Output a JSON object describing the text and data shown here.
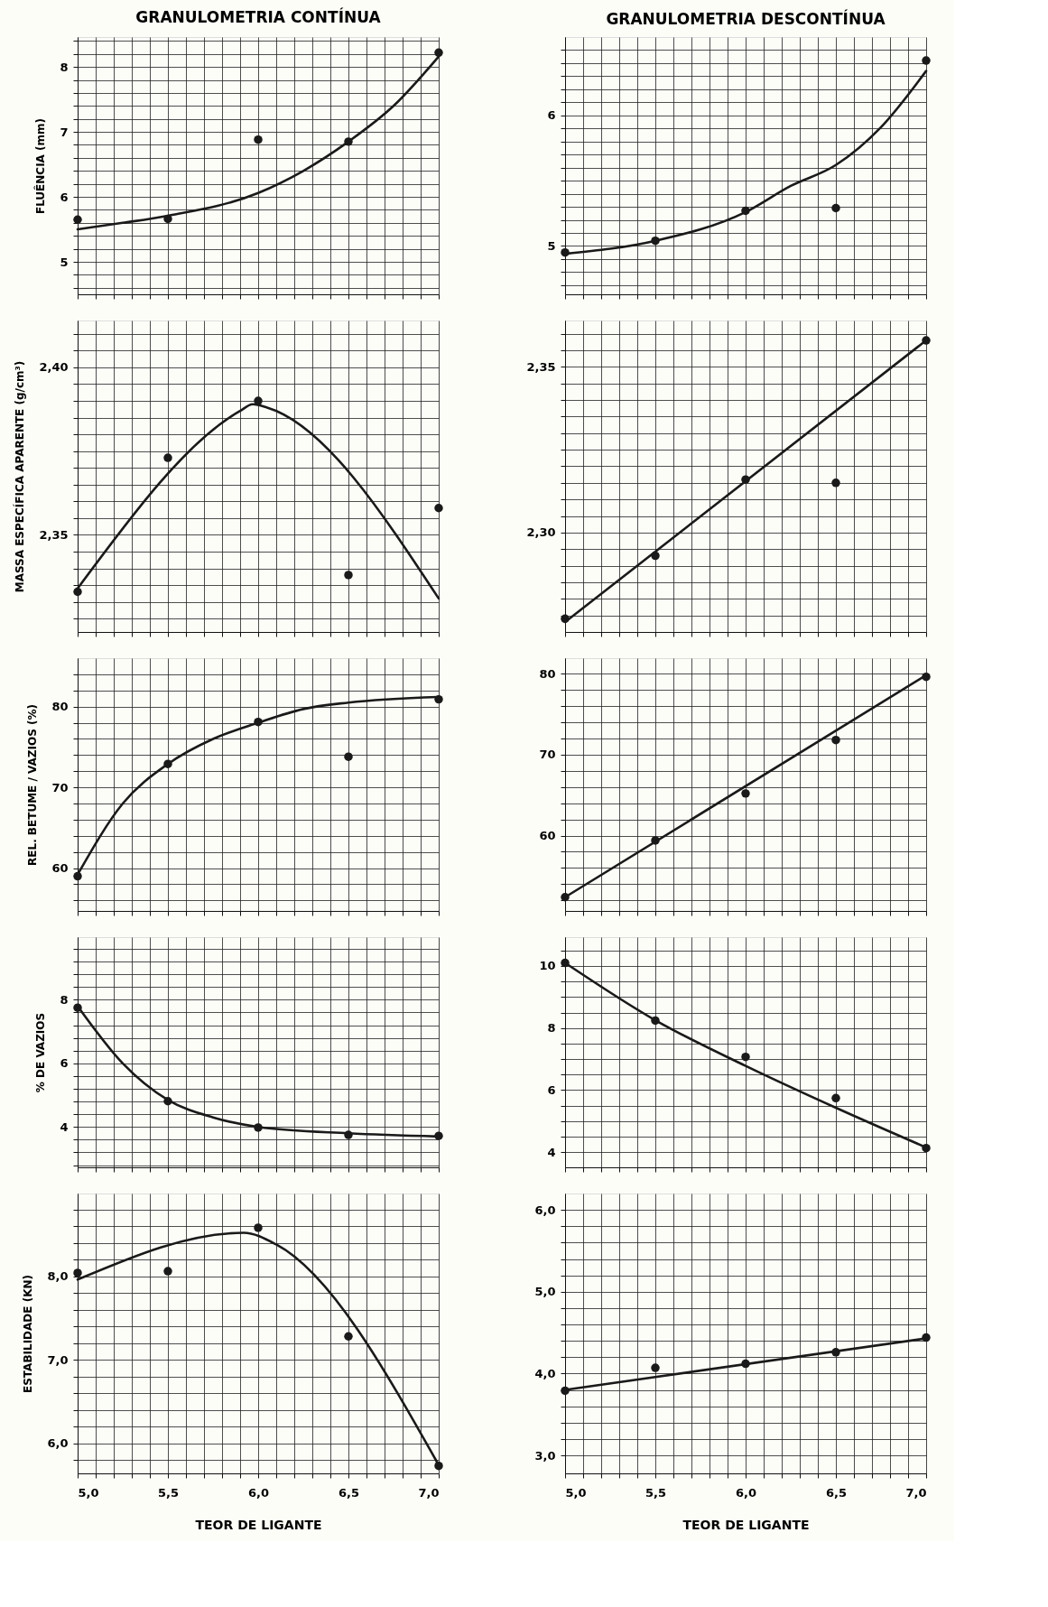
{
  "chart_data": [
    {
      "type": "scatter",
      "title": "GRANULOMETRIA CONTÍNUA",
      "ylabel": "FLUÊNCIA (mm)",
      "xlim": [
        5.0,
        7.0
      ],
      "ylim": [
        4.5,
        8.46
      ],
      "grid": true,
      "marker": "circle",
      "tick_labels": "y",
      "xticks": [
        {
          "value": 5.0,
          "label": null
        },
        {
          "value": 5.1,
          "label": null
        },
        {
          "value": 5.2,
          "label": null
        },
        {
          "value": 5.3,
          "label": null
        },
        {
          "value": 5.4,
          "label": null
        },
        {
          "value": 5.5,
          "label": null
        },
        {
          "value": 5.6,
          "label": null
        },
        {
          "value": 5.7,
          "label": null
        },
        {
          "value": 5.8,
          "label": null
        },
        {
          "value": 5.9,
          "label": null
        },
        {
          "value": 6.0,
          "label": null
        },
        {
          "value": 6.1,
          "label": null
        },
        {
          "value": 6.2,
          "label": null
        },
        {
          "value": 6.3,
          "label": null
        },
        {
          "value": 6.4,
          "label": null
        },
        {
          "value": 6.5,
          "label": null
        },
        {
          "value": 6.6,
          "label": null
        },
        {
          "value": 6.7,
          "label": null
        },
        {
          "value": 6.8,
          "label": null
        },
        {
          "value": 6.9,
          "label": null
        },
        {
          "value": 7.0,
          "label": null
        }
      ],
      "yticks": [
        {
          "value": 4.6,
          "label": null
        },
        {
          "value": 4.8,
          "label": null
        },
        5,
        {
          "value": 5.2,
          "label": null
        },
        {
          "value": 5.4,
          "label": null
        },
        {
          "value": 5.6,
          "label": null
        },
        {
          "value": 5.8,
          "label": null
        },
        6,
        {
          "value": 6.2,
          "label": null
        },
        {
          "value": 6.4,
          "label": null
        },
        {
          "value": 6.6,
          "label": null
        },
        {
          "value": 6.8,
          "label": null
        },
        7,
        {
          "value": 7.2,
          "label": null
        },
        {
          "value": 7.4,
          "label": null
        },
        {
          "value": 7.6,
          "label": null
        },
        {
          "value": 7.8,
          "label": null
        },
        8,
        {
          "value": 8.2,
          "label": null
        },
        {
          "value": 8.4,
          "label": null
        }
      ],
      "series": [
        {
          "color": "#1a1a1a",
          "x": [
            5.0,
            5.5,
            6.0,
            6.5,
            7.0
          ],
          "values": [
            5.65,
            5.66,
            6.88,
            6.85,
            8.22
          ]
        },
        {
          "type": "line",
          "marker": "none",
          "color": "#1a1a1a",
          "x": [
            5.0,
            5.25,
            5.5,
            6.0,
            6.25,
            6.5,
            6.75,
            7.0
          ],
          "values": [
            5.5,
            5.6,
            5.71,
            6.06,
            6.4,
            6.85,
            7.4,
            8.16
          ]
        }
      ]
    },
    {
      "type": "scatter",
      "title": "GRANULOMETRIA DESCONTÍNUA",
      "xlim": [
        5.0,
        7.0
      ],
      "ylim": [
        4.63,
        6.6
      ],
      "grid": true,
      "marker": "circle",
      "tick_labels": "y",
      "xticks": [
        {
          "value": 5.0,
          "label": null
        },
        {
          "value": 5.1,
          "label": null
        },
        {
          "value": 5.2,
          "label": null
        },
        {
          "value": 5.3,
          "label": null
        },
        {
          "value": 5.4,
          "label": null
        },
        {
          "value": 5.5,
          "label": null
        },
        {
          "value": 5.6,
          "label": null
        },
        {
          "value": 5.7,
          "label": null
        },
        {
          "value": 5.8,
          "label": null
        },
        {
          "value": 5.9,
          "label": null
        },
        {
          "value": 6.0,
          "label": null
        },
        {
          "value": 6.1,
          "label": null
        },
        {
          "value": 6.2,
          "label": null
        },
        {
          "value": 6.3,
          "label": null
        },
        {
          "value": 6.4,
          "label": null
        },
        {
          "value": 6.5,
          "label": null
        },
        {
          "value": 6.6,
          "label": null
        },
        {
          "value": 6.7,
          "label": null
        },
        {
          "value": 6.8,
          "label": null
        },
        {
          "value": 6.9,
          "label": null
        },
        {
          "value": 7.0,
          "label": null
        }
      ],
      "yticks": [
        {
          "value": 4.7,
          "label": null
        },
        {
          "value": 4.8,
          "label": null
        },
        {
          "value": 4.9,
          "label": null
        },
        5,
        {
          "value": 5.1,
          "label": null
        },
        {
          "value": 5.2,
          "label": null
        },
        {
          "value": 5.3,
          "label": null
        },
        {
          "value": 5.4,
          "label": null
        },
        {
          "value": 5.5,
          "label": null
        },
        {
          "value": 5.6,
          "label": null
        },
        {
          "value": 5.7,
          "label": null
        },
        {
          "value": 5.8,
          "label": null
        },
        {
          "value": 5.9,
          "label": null
        },
        6,
        {
          "value": 6.1,
          "label": null
        },
        {
          "value": 6.2,
          "label": null
        },
        {
          "value": 6.3,
          "label": null
        },
        {
          "value": 6.4,
          "label": null
        },
        {
          "value": 6.5,
          "label": null
        }
      ],
      "series": [
        {
          "color": "#1a1a1a",
          "x": [
            5.0,
            5.5,
            6.0,
            6.5,
            7.0
          ],
          "values": [
            4.95,
            5.04,
            5.27,
            5.29,
            6.42
          ]
        },
        {
          "type": "line",
          "marker": "none",
          "color": "#1a1a1a",
          "x": [
            5.0,
            5.5,
            6.0,
            6.25,
            6.5,
            6.75,
            7.0
          ],
          "values": [
            4.94,
            5.04,
            5.26,
            5.46,
            5.62,
            5.91,
            6.34
          ]
        }
      ]
    },
    {
      "type": "scatter",
      "ylabel": "MASSA ESPECÍFICA APARENTE (g/cm³)",
      "xlim": [
        5.0,
        7.0
      ],
      "ylim": [
        2.321,
        2.414
      ],
      "grid": true,
      "marker": "circle",
      "tick_labels": "y",
      "xticks": [
        {
          "value": 5.0,
          "label": null
        },
        {
          "value": 5.1,
          "label": null
        },
        {
          "value": 5.2,
          "label": null
        },
        {
          "value": 5.3,
          "label": null
        },
        {
          "value": 5.4,
          "label": null
        },
        {
          "value": 5.5,
          "label": null
        },
        {
          "value": 5.6,
          "label": null
        },
        {
          "value": 5.7,
          "label": null
        },
        {
          "value": 5.8,
          "label": null
        },
        {
          "value": 5.9,
          "label": null
        },
        {
          "value": 6.0,
          "label": null
        },
        {
          "value": 6.1,
          "label": null
        },
        {
          "value": 6.2,
          "label": null
        },
        {
          "value": 6.3,
          "label": null
        },
        {
          "value": 6.4,
          "label": null
        },
        {
          "value": 6.5,
          "label": null
        },
        {
          "value": 6.6,
          "label": null
        },
        {
          "value": 6.7,
          "label": null
        },
        {
          "value": 6.8,
          "label": null
        },
        {
          "value": 6.9,
          "label": null
        },
        {
          "value": 7.0,
          "label": null
        }
      ],
      "yticks": [
        {
          "value": 2.325,
          "label": null
        },
        {
          "value": 2.33,
          "label": null
        },
        {
          "value": 2.335,
          "label": null
        },
        {
          "value": 2.34,
          "label": null
        },
        {
          "value": 2.345,
          "label": null
        },
        {
          "value": 2.35,
          "label": "2,35"
        },
        {
          "value": 2.355,
          "label": null
        },
        {
          "value": 2.36,
          "label": null
        },
        {
          "value": 2.365,
          "label": null
        },
        {
          "value": 2.37,
          "label": null
        },
        {
          "value": 2.375,
          "label": null
        },
        {
          "value": 2.38,
          "label": null
        },
        {
          "value": 2.385,
          "label": null
        },
        {
          "value": 2.39,
          "label": null
        },
        {
          "value": 2.395,
          "label": null
        },
        {
          "value": 2.4,
          "label": "2,40"
        },
        {
          "value": 2.405,
          "label": null
        },
        {
          "value": 2.41,
          "label": null
        }
      ],
      "series": [
        {
          "color": "#1a1a1a",
          "x": [
            5.0,
            5.5,
            6.0,
            6.5,
            7.0
          ],
          "values": [
            2.333,
            2.373,
            2.39,
            2.338,
            2.358
          ]
        },
        {
          "type": "line",
          "marker": "none",
          "color": "#1a1a1a",
          "x": [
            5.0,
            5.9,
            5.97,
            6.05,
            7.0
          ],
          "values": [
            2.334,
            2.387,
            2.389,
            2.388,
            2.331
          ]
        }
      ]
    },
    {
      "type": "scatter",
      "xlim": [
        5.0,
        7.0
      ],
      "ylim": [
        2.27,
        2.364
      ],
      "grid": true,
      "marker": "circle",
      "tick_labels": "y",
      "xticks": [
        {
          "value": 5.0,
          "label": null
        },
        {
          "value": 5.1,
          "label": null
        },
        {
          "value": 5.2,
          "label": null
        },
        {
          "value": 5.3,
          "label": null
        },
        {
          "value": 5.4,
          "label": null
        },
        {
          "value": 5.5,
          "label": null
        },
        {
          "value": 5.6,
          "label": null
        },
        {
          "value": 5.7,
          "label": null
        },
        {
          "value": 5.8,
          "label": null
        },
        {
          "value": 5.9,
          "label": null
        },
        {
          "value": 6.0,
          "label": null
        },
        {
          "value": 6.1,
          "label": null
        },
        {
          "value": 6.2,
          "label": null
        },
        {
          "value": 6.3,
          "label": null
        },
        {
          "value": 6.4,
          "label": null
        },
        {
          "value": 6.5,
          "label": null
        },
        {
          "value": 6.6,
          "label": null
        },
        {
          "value": 6.7,
          "label": null
        },
        {
          "value": 6.8,
          "label": null
        },
        {
          "value": 6.9,
          "label": null
        },
        {
          "value": 7.0,
          "label": null
        }
      ],
      "yticks": [
        {
          "value": 2.275,
          "label": null
        },
        {
          "value": 2.28,
          "label": null
        },
        {
          "value": 2.285,
          "label": null
        },
        {
          "value": 2.29,
          "label": null
        },
        {
          "value": 2.295,
          "label": null
        },
        {
          "value": 2.3,
          "label": "2,30"
        },
        {
          "value": 2.305,
          "label": null
        },
        {
          "value": 2.31,
          "label": null
        },
        {
          "value": 2.315,
          "label": null
        },
        {
          "value": 2.32,
          "label": null
        },
        {
          "value": 2.325,
          "label": null
        },
        {
          "value": 2.33,
          "label": null
        },
        {
          "value": 2.335,
          "label": null
        },
        {
          "value": 2.34,
          "label": null
        },
        {
          "value": 2.345,
          "label": null
        },
        {
          "value": 2.35,
          "label": "2,35"
        },
        {
          "value": 2.355,
          "label": null
        },
        {
          "value": 2.36,
          "label": null
        }
      ],
      "series": [
        {
          "color": "#1a1a1a",
          "x": [
            5.0,
            5.5,
            6.0,
            6.5,
            7.0
          ],
          "values": [
            2.274,
            2.293,
            2.316,
            2.315,
            2.358
          ]
        },
        {
          "type": "line",
          "marker": "none",
          "color": "#1a1a1a",
          "x": [
            5.0,
            7.0
          ],
          "values": [
            2.273,
            2.358
          ]
        }
      ]
    },
    {
      "type": "scatter",
      "ylabel": "REL. BETUME / VAZIOS (%)",
      "xlim": [
        5.0,
        7.0
      ],
      "ylim": [
        54.7,
        86
      ],
      "grid": true,
      "marker": "circle",
      "tick_labels": "y",
      "xticks": [
        {
          "value": 5.0,
          "label": null
        },
        {
          "value": 5.1,
          "label": null
        },
        {
          "value": 5.2,
          "label": null
        },
        {
          "value": 5.3,
          "label": null
        },
        {
          "value": 5.4,
          "label": null
        },
        {
          "value": 5.5,
          "label": null
        },
        {
          "value": 5.6,
          "label": null
        },
        {
          "value": 5.7,
          "label": null
        },
        {
          "value": 5.8,
          "label": null
        },
        {
          "value": 5.9,
          "label": null
        },
        {
          "value": 6.0,
          "label": null
        },
        {
          "value": 6.1,
          "label": null
        },
        {
          "value": 6.2,
          "label": null
        },
        {
          "value": 6.3,
          "label": null
        },
        {
          "value": 6.4,
          "label": null
        },
        {
          "value": 6.5,
          "label": null
        },
        {
          "value": 6.6,
          "label": null
        },
        {
          "value": 6.7,
          "label": null
        },
        {
          "value": 6.8,
          "label": null
        },
        {
          "value": 6.9,
          "label": null
        },
        {
          "value": 7.0,
          "label": null
        }
      ],
      "yticks": [
        {
          "value": 56,
          "label": null
        },
        {
          "value": 58,
          "label": null
        },
        60,
        {
          "value": 62,
          "label": null
        },
        {
          "value": 64,
          "label": null
        },
        {
          "value": 66,
          "label": null
        },
        {
          "value": 68,
          "label": null
        },
        70,
        {
          "value": 72,
          "label": null
        },
        {
          "value": 74,
          "label": null
        },
        {
          "value": 76,
          "label": null
        },
        {
          "value": 78,
          "label": null
        },
        80,
        {
          "value": 82,
          "label": null
        },
        {
          "value": 84,
          "label": null
        }
      ],
      "series": [
        {
          "color": "#1a1a1a",
          "x": [
            5.0,
            5.5,
            6.0,
            6.5,
            7.0
          ],
          "values": [
            59.0,
            72.9,
            78.1,
            73.8,
            80.9
          ]
        },
        {
          "type": "line",
          "marker": "none",
          "color": "#1a1a1a",
          "x": [
            5.0,
            5.25,
            5.5,
            5.75,
            6.0,
            6.25,
            6.5,
            7.0
          ],
          "values": [
            59.2,
            68,
            72.9,
            76,
            78,
            79.7,
            80.5,
            81.2
          ]
        }
      ]
    },
    {
      "type": "scatter",
      "xlim": [
        5.0,
        7.0
      ],
      "ylim": [
        50.7,
        81.9
      ],
      "grid": true,
      "marker": "circle",
      "tick_labels": "y",
      "xticks": [
        {
          "value": 5.0,
          "label": null
        },
        {
          "value": 5.1,
          "label": null
        },
        {
          "value": 5.2,
          "label": null
        },
        {
          "value": 5.3,
          "label": null
        },
        {
          "value": 5.4,
          "label": null
        },
        {
          "value": 5.5,
          "label": null
        },
        {
          "value": 5.6,
          "label": null
        },
        {
          "value": 5.7,
          "label": null
        },
        {
          "value": 5.8,
          "label": null
        },
        {
          "value": 5.9,
          "label": null
        },
        {
          "value": 6.0,
          "label": null
        },
        {
          "value": 6.1,
          "label": null
        },
        {
          "value": 6.2,
          "label": null
        },
        {
          "value": 6.3,
          "label": null
        },
        {
          "value": 6.4,
          "label": null
        },
        {
          "value": 6.5,
          "label": null
        },
        {
          "value": 6.6,
          "label": null
        },
        {
          "value": 6.7,
          "label": null
        },
        {
          "value": 6.8,
          "label": null
        },
        {
          "value": 6.9,
          "label": null
        },
        {
          "value": 7.0,
          "label": null
        }
      ],
      "yticks": [
        {
          "value": 52,
          "label": null
        },
        {
          "value": 54,
          "label": null
        },
        {
          "value": 56,
          "label": null
        },
        {
          "value": 58,
          "label": null
        },
        60,
        {
          "value": 62,
          "label": null
        },
        {
          "value": 64,
          "label": null
        },
        {
          "value": 66,
          "label": null
        },
        {
          "value": 68,
          "label": null
        },
        70,
        {
          "value": 72,
          "label": null
        },
        {
          "value": 74,
          "label": null
        },
        {
          "value": 76,
          "label": null
        },
        {
          "value": 78,
          "label": null
        },
        80
      ],
      "series": [
        {
          "color": "#1a1a1a",
          "x": [
            5.0,
            5.5,
            6.0,
            6.5,
            7.0
          ],
          "values": [
            52.4,
            59.4,
            65.2,
            71.8,
            79.6
          ]
        },
        {
          "type": "line",
          "marker": "none",
          "color": "#1a1a1a",
          "x": [
            5.0,
            7.0
          ],
          "values": [
            52.4,
            79.8
          ]
        }
      ]
    },
    {
      "type": "scatter",
      "ylabel": "% DE VAZIOS",
      "xlim": [
        5.0,
        7.0
      ],
      "ylim": [
        2.73,
        9.97
      ],
      "grid": true,
      "marker": "circle",
      "tick_labels": "y",
      "xticks": [
        {
          "value": 5.0,
          "label": null
        },
        {
          "value": 5.1,
          "label": null
        },
        {
          "value": 5.2,
          "label": null
        },
        {
          "value": 5.3,
          "label": null
        },
        {
          "value": 5.4,
          "label": null
        },
        {
          "value": 5.5,
          "label": null
        },
        {
          "value": 5.6,
          "label": null
        },
        {
          "value": 5.7,
          "label": null
        },
        {
          "value": 5.8,
          "label": null
        },
        {
          "value": 5.9,
          "label": null
        },
        {
          "value": 6.0,
          "label": null
        },
        {
          "value": 6.1,
          "label": null
        },
        {
          "value": 6.2,
          "label": null
        },
        {
          "value": 6.3,
          "label": null
        },
        {
          "value": 6.4,
          "label": null
        },
        {
          "value": 6.5,
          "label": null
        },
        {
          "value": 6.6,
          "label": null
        },
        {
          "value": 6.7,
          "label": null
        },
        {
          "value": 6.8,
          "label": null
        },
        {
          "value": 6.9,
          "label": null
        },
        {
          "value": 7.0,
          "label": null
        }
      ],
      "yticks": [
        {
          "value": 2.8,
          "label": null
        },
        {
          "value": 3.2,
          "label": null
        },
        {
          "value": 3.6,
          "label": null
        },
        4,
        {
          "value": 4.4,
          "label": null
        },
        {
          "value": 4.8,
          "label": null
        },
        {
          "value": 5.2,
          "label": null
        },
        {
          "value": 5.6,
          "label": null
        },
        6,
        {
          "value": 6.4,
          "label": null
        },
        {
          "value": 6.8,
          "label": null
        },
        {
          "value": 7.2,
          "label": null
        },
        {
          "value": 7.6,
          "label": null
        },
        8,
        {
          "value": 8.4,
          "label": null
        },
        {
          "value": 8.8,
          "label": null
        },
        {
          "value": 9.2,
          "label": null
        },
        {
          "value": 9.6,
          "label": null
        }
      ],
      "series": [
        {
          "color": "#1a1a1a",
          "x": [
            5.0,
            5.5,
            6.0,
            6.5,
            7.0
          ],
          "values": [
            7.75,
            4.81,
            3.98,
            3.75,
            3.72
          ]
        },
        {
          "type": "line",
          "marker": "none",
          "color": "#1a1a1a",
          "x": [
            5.0,
            5.25,
            5.5,
            5.75,
            6.0,
            6.5,
            7.0
          ],
          "values": [
            7.8,
            6.0,
            4.85,
            4.3,
            4.0,
            3.8,
            3.7
          ]
        }
      ]
    },
    {
      "type": "scatter",
      "xlim": [
        5.0,
        7.0
      ],
      "ylim": [
        3.51,
        10.93
      ],
      "grid": true,
      "marker": "circle",
      "tick_labels": "y",
      "xticks": [
        {
          "value": 5.0,
          "label": null
        },
        {
          "value": 5.1,
          "label": null
        },
        {
          "value": 5.2,
          "label": null
        },
        {
          "value": 5.3,
          "label": null
        },
        {
          "value": 5.4,
          "label": null
        },
        {
          "value": 5.5,
          "label": null
        },
        {
          "value": 5.6,
          "label": null
        },
        {
          "value": 5.7,
          "label": null
        },
        {
          "value": 5.8,
          "label": null
        },
        {
          "value": 5.9,
          "label": null
        },
        {
          "value": 6.0,
          "label": null
        },
        {
          "value": 6.1,
          "label": null
        },
        {
          "value": 6.2,
          "label": null
        },
        {
          "value": 6.3,
          "label": null
        },
        {
          "value": 6.4,
          "label": null
        },
        {
          "value": 6.5,
          "label": null
        },
        {
          "value": 6.6,
          "label": null
        },
        {
          "value": 6.7,
          "label": null
        },
        {
          "value": 6.8,
          "label": null
        },
        {
          "value": 6.9,
          "label": null
        },
        {
          "value": 7.0,
          "label": null
        }
      ],
      "yticks": [
        4,
        {
          "value": 4.5,
          "label": null
        },
        {
          "value": 5,
          "label": null
        },
        {
          "value": 5.5,
          "label": null
        },
        6,
        {
          "value": 6.5,
          "label": null
        },
        {
          "value": 7,
          "label": null
        },
        {
          "value": 7.5,
          "label": null
        },
        8,
        {
          "value": 8.5,
          "label": null
        },
        {
          "value": 9,
          "label": null
        },
        {
          "value": 9.5,
          "label": null
        },
        10,
        {
          "value": 10.5,
          "label": null
        }
      ],
      "series": [
        {
          "color": "#1a1a1a",
          "x": [
            5.0,
            5.5,
            6.0,
            6.5,
            7.0
          ],
          "values": [
            10.1,
            8.24,
            7.07,
            5.74,
            4.13
          ]
        },
        {
          "type": "line",
          "marker": "none",
          "color": "#1a1a1a",
          "x": [
            5.0,
            5.5,
            6.0,
            6.5,
            7.0
          ],
          "values": [
            10.1,
            8.25,
            6.78,
            5.43,
            4.15
          ]
        }
      ]
    },
    {
      "type": "scatter",
      "ylabel": "ESTABILIDADE (KN)",
      "xlabel": "TEOR DE LIGANTE",
      "xlim": [
        5.0,
        7.0
      ],
      "ylim": [
        5.64,
        8.99
      ],
      "grid": true,
      "marker": "circle",
      "xticks": [
        {
          "value": 5.0,
          "label": "5,0"
        },
        {
          "value": 5.1,
          "label": null
        },
        {
          "value": 5.2,
          "label": null
        },
        {
          "value": 5.3,
          "label": null
        },
        {
          "value": 5.4,
          "label": null
        },
        {
          "value": 5.5,
          "label": "5,5"
        },
        {
          "value": 5.6,
          "label": null
        },
        {
          "value": 5.7,
          "label": null
        },
        {
          "value": 5.8,
          "label": null
        },
        {
          "value": 5.9,
          "label": null
        },
        {
          "value": 6.0,
          "label": "6,0"
        },
        {
          "value": 6.1,
          "label": null
        },
        {
          "value": 6.2,
          "label": null
        },
        {
          "value": 6.3,
          "label": null
        },
        {
          "value": 6.4,
          "label": null
        },
        {
          "value": 6.5,
          "label": "6,5"
        },
        {
          "value": 6.6,
          "label": null
        },
        {
          "value": 6.7,
          "label": null
        },
        {
          "value": 6.8,
          "label": null
        },
        {
          "value": 6.9,
          "label": null
        },
        {
          "value": 7.0,
          "label": "7,0"
        }
      ],
      "yticks": [
        {
          "value": 5.8,
          "label": null
        },
        {
          "value": 6,
          "label": "6,0"
        },
        {
          "value": 6.2,
          "label": null
        },
        {
          "value": 6.4,
          "label": null
        },
        {
          "value": 6.6,
          "label": null
        },
        {
          "value": 6.8,
          "label": null
        },
        {
          "value": 7,
          "label": "7,0"
        },
        {
          "value": 7.2,
          "label": null
        },
        {
          "value": 7.4,
          "label": null
        },
        {
          "value": 7.6,
          "label": null
        },
        {
          "value": 7.8,
          "label": null
        },
        {
          "value": 8,
          "label": "8,0"
        },
        {
          "value": 8.2,
          "label": null
        },
        {
          "value": 8.4,
          "label": null
        },
        {
          "value": 8.6,
          "label": null
        },
        {
          "value": 8.8,
          "label": null
        }
      ],
      "series": [
        {
          "color": "#1a1a1a",
          "x": [
            5.0,
            5.5,
            6.0,
            6.5,
            7.0
          ],
          "values": [
            8.04,
            8.06,
            8.58,
            7.28,
            5.73
          ]
        },
        {
          "type": "line",
          "marker": "none",
          "color": "#1a1a1a",
          "x": [
            5.0,
            5.92,
            6.1,
            7.0
          ],
          "values": [
            7.96,
            8.52,
            8.38,
            5.74
          ]
        }
      ]
    },
    {
      "type": "scatter",
      "xlabel": "TEOR DE LIGANTE",
      "xlim": [
        5.0,
        7.0
      ],
      "ylim": [
        2.78,
        6.2
      ],
      "grid": true,
      "marker": "circle",
      "xticks": [
        {
          "value": 5.0,
          "label": "5,0"
        },
        {
          "value": 5.1,
          "label": null
        },
        {
          "value": 5.2,
          "label": null
        },
        {
          "value": 5.3,
          "label": null
        },
        {
          "value": 5.4,
          "label": null
        },
        {
          "value": 5.5,
          "label": "5,5"
        },
        {
          "value": 5.6,
          "label": null
        },
        {
          "value": 5.7,
          "label": null
        },
        {
          "value": 5.8,
          "label": null
        },
        {
          "value": 5.9,
          "label": null
        },
        {
          "value": 6.0,
          "label": "6,0"
        },
        {
          "value": 6.1,
          "label": null
        },
        {
          "value": 6.2,
          "label": null
        },
        {
          "value": 6.3,
          "label": null
        },
        {
          "value": 6.4,
          "label": null
        },
        {
          "value": 6.5,
          "label": "6,5"
        },
        {
          "value": 6.6,
          "label": null
        },
        {
          "value": 6.7,
          "label": null
        },
        {
          "value": 6.8,
          "label": null
        },
        {
          "value": 6.9,
          "label": null
        },
        {
          "value": 7.0,
          "label": "7,0"
        }
      ],
      "yticks": [
        {
          "value": 3,
          "label": "3,0"
        },
        {
          "value": 3.2,
          "label": null
        },
        {
          "value": 3.4,
          "label": null
        },
        {
          "value": 3.6,
          "label": null
        },
        {
          "value": 3.8,
          "label": null
        },
        {
          "value": 4,
          "label": "4,0"
        },
        {
          "value": 4.2,
          "label": null
        },
        {
          "value": 4.4,
          "label": null
        },
        {
          "value": 4.6,
          "label": null
        },
        {
          "value": 4.8,
          "label": null
        },
        {
          "value": 5,
          "label": "5,0"
        },
        {
          "value": 5.2,
          "label": null
        },
        {
          "value": 5.4,
          "label": null
        },
        {
          "value": 5.6,
          "label": null
        },
        {
          "value": 5.8,
          "label": null
        },
        {
          "value": 6,
          "label": "6,0"
        }
      ],
      "series": [
        {
          "color": "#1a1a1a",
          "x": [
            5.0,
            5.5,
            6.0,
            6.5,
            7.0
          ],
          "values": [
            3.79,
            4.07,
            4.12,
            4.26,
            4.44
          ]
        },
        {
          "type": "line",
          "marker": "none",
          "color": "#1a1a1a",
          "x": [
            5.0,
            7.0
          ],
          "values": [
            3.8,
            4.43
          ]
        }
      ]
    }
  ]
}
